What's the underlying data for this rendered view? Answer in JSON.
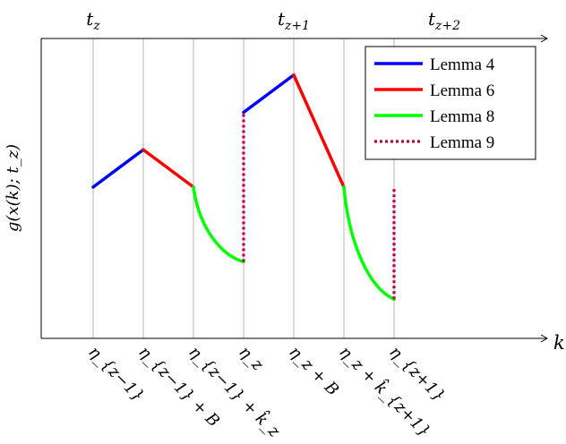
{
  "chart_data": {
    "type": "line",
    "ylabel": "g(x(k); t_z)",
    "xlabel": "k",
    "top_ticks": [
      {
        "x": 1,
        "base": "t",
        "sub": "z"
      },
      {
        "x": 5,
        "base": "t",
        "sub": "z+1"
      },
      {
        "x": 8,
        "base": "t",
        "sub": "z+2"
      }
    ],
    "bottom_ticks": [
      {
        "x": 1,
        "label": "η_{z−1}"
      },
      {
        "x": 2,
        "label": "η_{z−1} + B"
      },
      {
        "x": 3,
        "label": "η_{z−1} + k̂_z"
      },
      {
        "x": 4,
        "label": "η_z"
      },
      {
        "x": 5,
        "label": "η_z + B"
      },
      {
        "x": 6,
        "label": "η_z + k̂_{z+1}"
      },
      {
        "x": 7,
        "label": "η_{z+1}"
      }
    ],
    "gridlines_x": [
      1,
      2,
      3,
      4,
      5,
      6,
      7
    ],
    "xlim": [
      0,
      10
    ],
    "ylim": [
      0,
      8
    ],
    "series": [
      {
        "name": "Lemma 4",
        "color": "#0000ff",
        "style": "solid",
        "curve": "linear",
        "segments": [
          [
            [
              1,
              4
            ],
            [
              2,
              5
            ]
          ],
          [
            [
              4,
              6
            ],
            [
              5,
              7
            ]
          ]
        ]
      },
      {
        "name": "Lemma 6",
        "color": "#ff0000",
        "style": "solid",
        "curve": "linear",
        "segments": [
          [
            [
              2,
              5
            ],
            [
              3,
              4
            ]
          ],
          [
            [
              5,
              7
            ],
            [
              6,
              4
            ]
          ]
        ]
      },
      {
        "name": "Lemma 8",
        "color": "#00ff00",
        "style": "solid",
        "curve": "convex",
        "segments": [
          [
            [
              3,
              4
            ],
            [
              4,
              2
            ]
          ],
          [
            [
              6,
              4
            ],
            [
              7,
              1
            ]
          ]
        ]
      },
      {
        "name": "Lemma 9",
        "color": "#bf0040",
        "style": "dotted",
        "curve": "linear",
        "segments": [
          [
            [
              4,
              2
            ],
            [
              4,
              6
            ]
          ],
          [
            [
              7,
              1
            ],
            [
              7,
              4
            ]
          ]
        ]
      }
    ],
    "legend": {
      "position": "top-right"
    },
    "grid": true
  }
}
